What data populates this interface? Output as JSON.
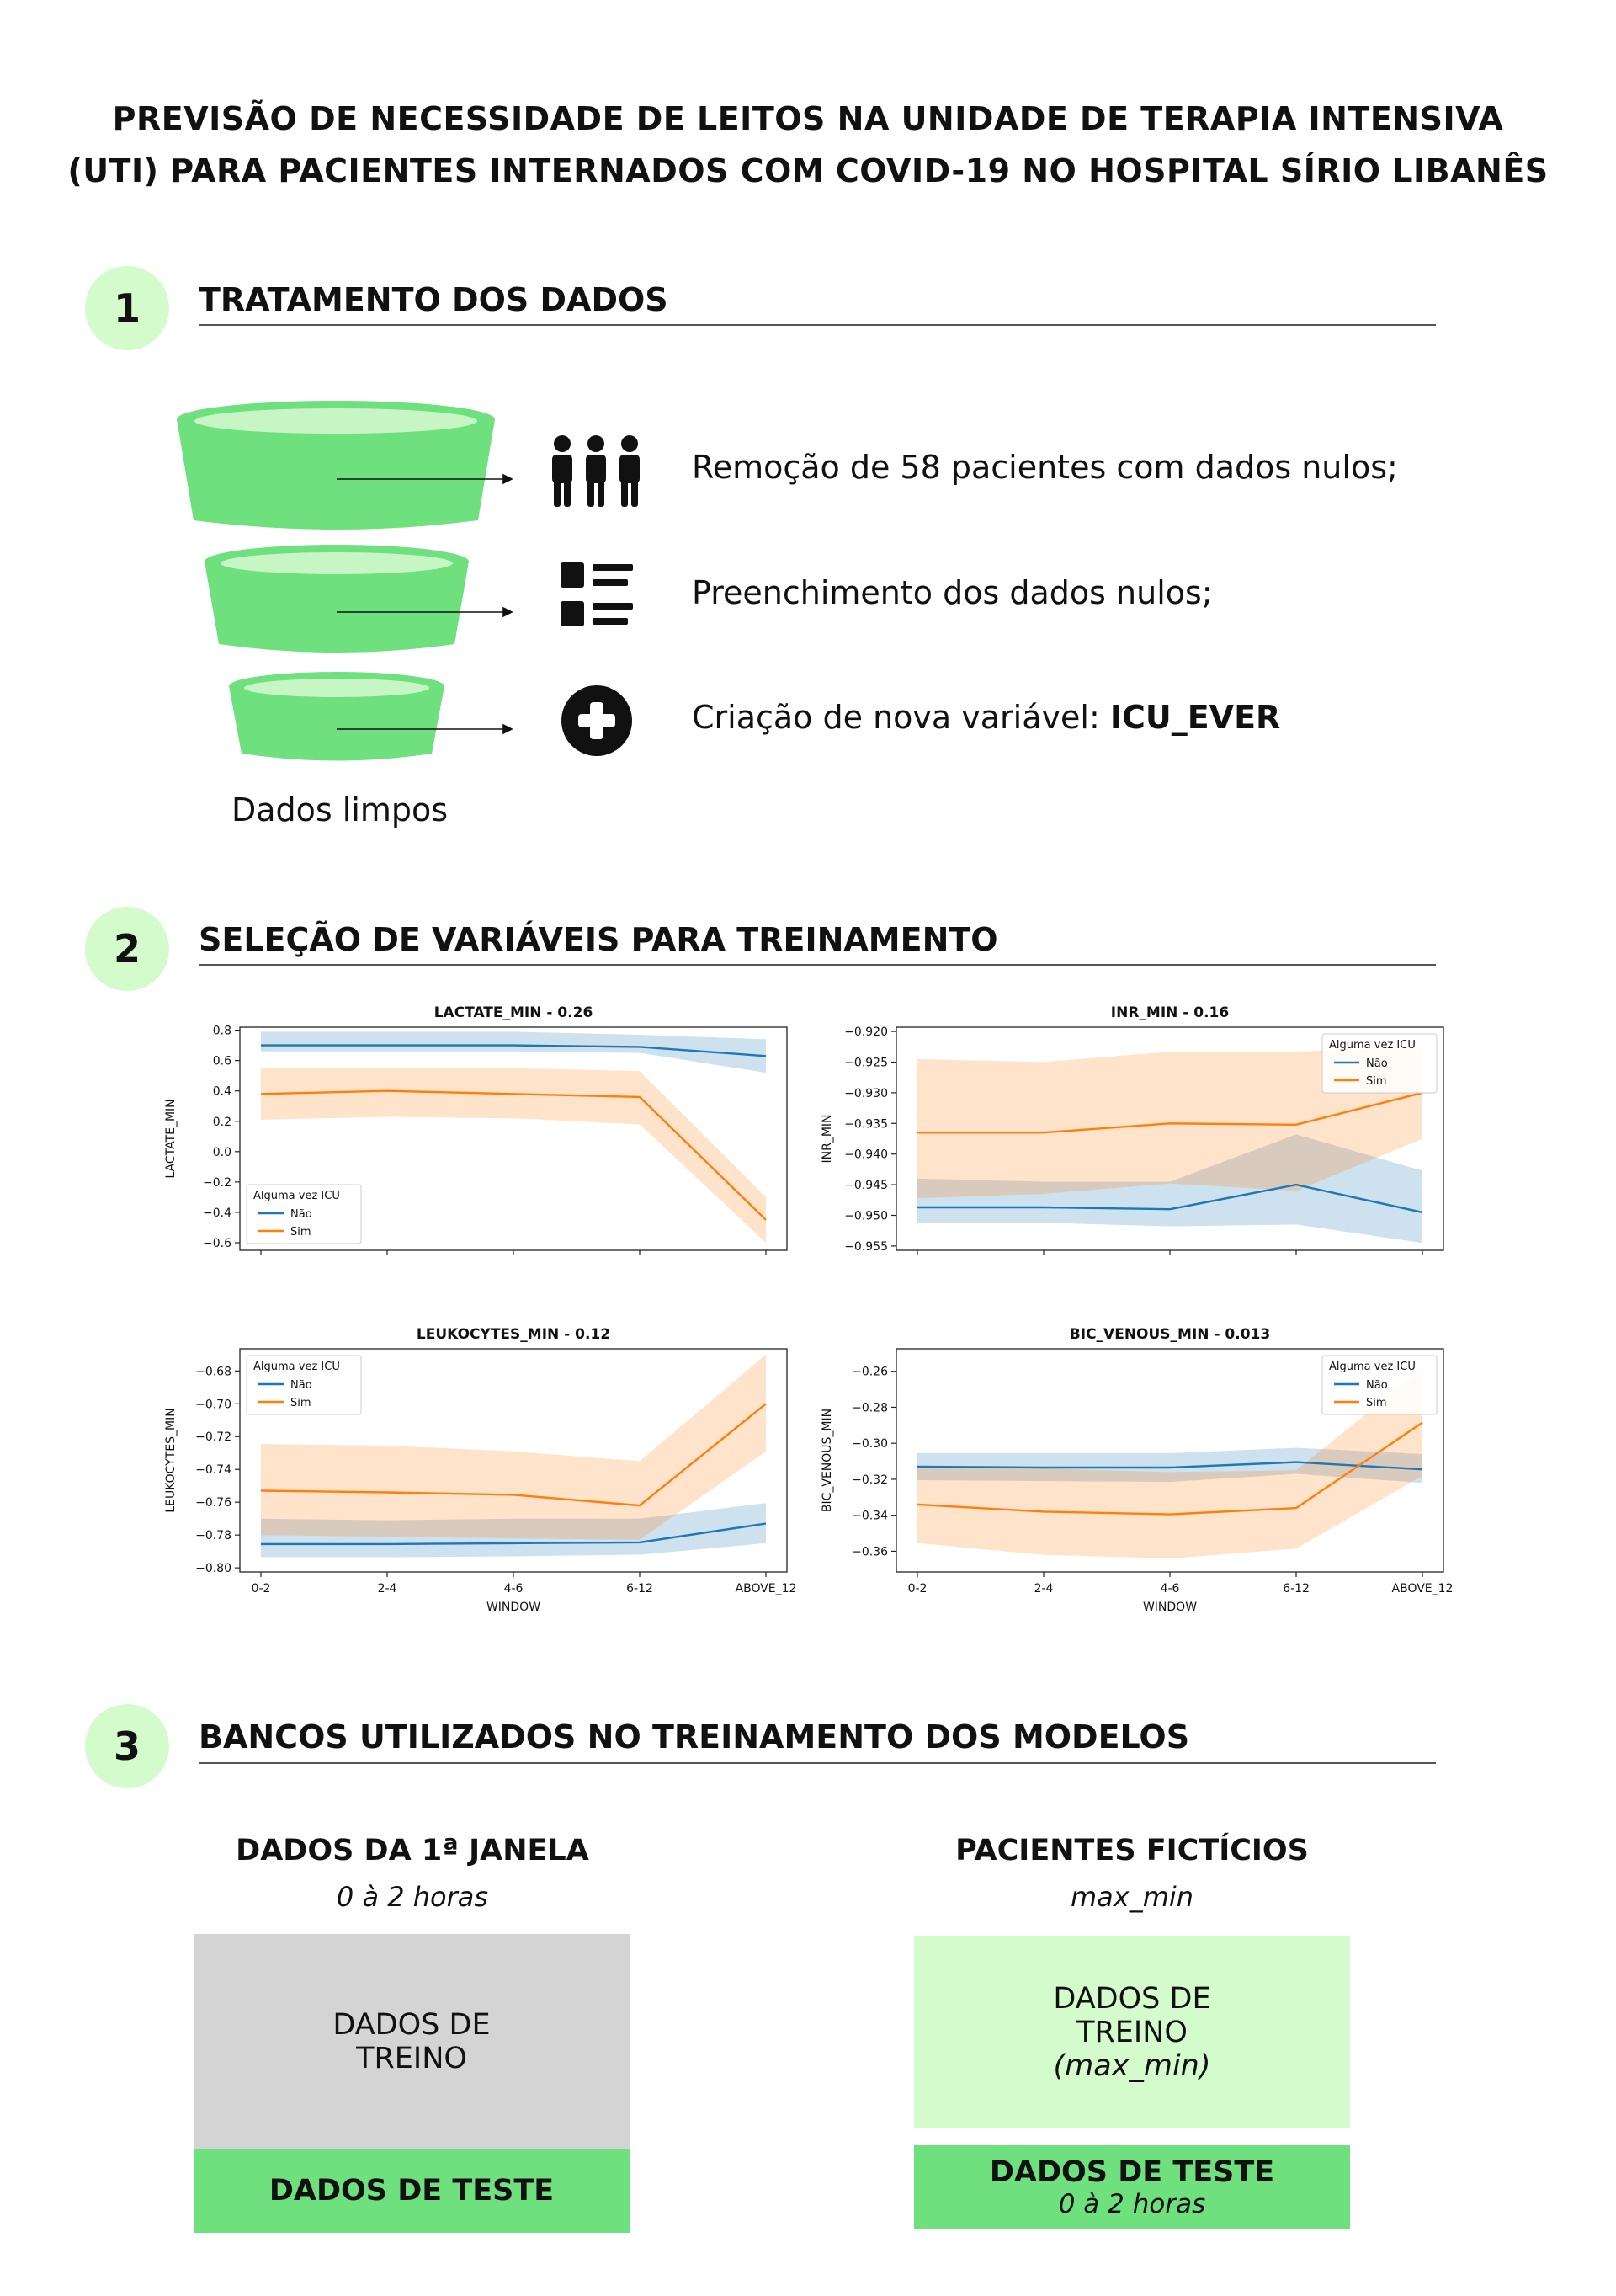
{
  "title": {
    "line1": "PREVISÃO DE NECESSIDADE DE LEITOS NA UNIDADE DE TERAPIA INTENSIVA",
    "line2": "(UTI) PARA PACIENTES INTERNADOS COM COVID-19 NO HOSPITAL SÍRIO LIBANÊS"
  },
  "colors": {
    "badge": "#d3fbcc",
    "green": "#6ee07e",
    "light_green": "#d3fbcc",
    "gray": "#d4d4d4",
    "nao": "#1f77b4",
    "sim": "#ff7f0e"
  },
  "section1": {
    "number": "1",
    "title": "TRATAMENTO DOS DADOS",
    "steps": [
      {
        "icon": "people-icon",
        "text": "Remoção de 58 pacientes com dados nulos;"
      },
      {
        "icon": "list-icon",
        "text": "Preenchimento dos dados nulos;"
      },
      {
        "icon": "plus-circle-icon",
        "text": "Criação de nova variável: ",
        "bold": "ICU_EVER"
      }
    ],
    "caption": "Dados limpos"
  },
  "section2": {
    "number": "2",
    "title": "SELEÇÃO DE VARIÁVEIS PARA TREINAMENTO"
  },
  "chart_data": [
    {
      "type": "line",
      "title": "LACTATE_MIN - 0.26",
      "xlabel": "",
      "ylabel": "LACTATE_MIN",
      "categories": [
        "0-2",
        "2-4",
        "4-6",
        "6-12",
        "ABOVE_12"
      ],
      "show_xticklabels": false,
      "ylim": [
        -0.65,
        0.82
      ],
      "yticks": [
        0.8,
        0.6,
        0.4,
        0.2,
        0.0,
        -0.2,
        -0.4,
        -0.6
      ],
      "ytick_labels": [
        "0.8",
        "0.6",
        "0.4",
        "0.2",
        "0.0",
        "−0.2",
        "−0.4",
        "−0.6"
      ],
      "legend": {
        "title": "Alguma vez ICU",
        "placement": "lower-left"
      },
      "series": [
        {
          "name": "Não",
          "values": [
            0.7,
            0.7,
            0.7,
            0.69,
            0.63
          ],
          "lower": [
            0.66,
            0.66,
            0.66,
            0.65,
            0.52
          ],
          "upper": [
            0.79,
            0.79,
            0.79,
            0.77,
            0.74
          ]
        },
        {
          "name": "Sim",
          "values": [
            0.38,
            0.4,
            0.38,
            0.36,
            -0.45
          ],
          "lower": [
            0.21,
            0.23,
            0.22,
            0.18,
            -0.6
          ],
          "upper": [
            0.55,
            0.55,
            0.55,
            0.53,
            -0.3
          ]
        }
      ]
    },
    {
      "type": "line",
      "title": "INR_MIN - 0.16",
      "xlabel": "",
      "ylabel": "INR_MIN",
      "categories": [
        "0-2",
        "2-4",
        "4-6",
        "6-12",
        "ABOVE_12"
      ],
      "show_xticklabels": false,
      "ylim": [
        -0.9557,
        -0.9193
      ],
      "yticks": [
        -0.92,
        -0.925,
        -0.93,
        -0.935,
        -0.94,
        -0.945,
        -0.95,
        -0.955
      ],
      "ytick_labels": [
        "−0.920",
        "−0.925",
        "−0.930",
        "−0.935",
        "−0.940",
        "−0.945",
        "−0.950",
        "−0.955"
      ],
      "legend": {
        "title": "Alguma vez ICU",
        "placement": "upper-right"
      },
      "series": [
        {
          "name": "Não",
          "values": [
            -0.9487,
            -0.9487,
            -0.949,
            -0.945,
            -0.9495
          ],
          "lower": [
            -0.9512,
            -0.9512,
            -0.9518,
            -0.9515,
            -0.9545
          ],
          "upper": [
            -0.944,
            -0.9445,
            -0.9445,
            -0.9368,
            -0.9427
          ]
        },
        {
          "name": "Sim",
          "values": [
            -0.9365,
            -0.9365,
            -0.935,
            -0.9352,
            -0.93
          ],
          "lower": [
            -0.9472,
            -0.9465,
            -0.9448,
            -0.946,
            -0.9375
          ],
          "upper": [
            -0.9245,
            -0.925,
            -0.9233,
            -0.9233,
            -0.9225
          ]
        }
      ]
    },
    {
      "type": "line",
      "title": "LEUKOCYTES_MIN - 0.12",
      "xlabel": "WINDOW",
      "ylabel": "LEUKOCYTES_MIN",
      "categories": [
        "0-2",
        "2-4",
        "4-6",
        "6-12",
        "ABOVE_12"
      ],
      "show_xticklabels": true,
      "ylim": [
        -0.8025,
        -0.6665
      ],
      "yticks": [
        -0.68,
        -0.7,
        -0.72,
        -0.74,
        -0.76,
        -0.78,
        -0.8
      ],
      "ytick_labels": [
        "−0.68",
        "−0.70",
        "−0.72",
        "−0.74",
        "−0.76",
        "−0.78",
        "−0.80"
      ],
      "legend": {
        "title": "Alguma vez ICU",
        "placement": "upper-left"
      },
      "series": [
        {
          "name": "Não",
          "values": [
            -0.7855,
            -0.7855,
            -0.785,
            -0.7845,
            -0.773
          ],
          "lower": [
            -0.7935,
            -0.7935,
            -0.793,
            -0.792,
            -0.785
          ],
          "upper": [
            -0.77,
            -0.771,
            -0.77,
            -0.77,
            -0.7605
          ]
        },
        {
          "name": "Sim",
          "values": [
            -0.753,
            -0.754,
            -0.7555,
            -0.762,
            -0.7
          ],
          "lower": [
            -0.78,
            -0.781,
            -0.782,
            -0.783,
            -0.729
          ],
          "upper": [
            -0.7245,
            -0.7255,
            -0.729,
            -0.735,
            -0.67
          ]
        }
      ]
    },
    {
      "type": "line",
      "title": "BIC_VENOUS_MIN - 0.013",
      "xlabel": "WINDOW",
      "ylabel": "BIC_VENOUS_MIN",
      "categories": [
        "0-2",
        "2-4",
        "4-6",
        "6-12",
        "ABOVE_12"
      ],
      "show_xticklabels": true,
      "ylim": [
        -0.3715,
        -0.2475
      ],
      "yticks": [
        -0.26,
        -0.28,
        -0.3,
        -0.32,
        -0.34,
        -0.36
      ],
      "ytick_labels": [
        "−0.26",
        "−0.28",
        "−0.30",
        "−0.32",
        "−0.34",
        "−0.36"
      ],
      "legend": {
        "title": "Alguma vez ICU",
        "placement": "upper-right"
      },
      "series": [
        {
          "name": "Não",
          "values": [
            -0.313,
            -0.3135,
            -0.3135,
            -0.3105,
            -0.3145
          ],
          "lower": [
            -0.3205,
            -0.321,
            -0.3215,
            -0.317,
            -0.322
          ],
          "upper": [
            -0.3055,
            -0.3055,
            -0.3055,
            -0.3025,
            -0.306
          ]
        },
        {
          "name": "Sim",
          "values": [
            -0.334,
            -0.338,
            -0.3395,
            -0.336,
            -0.2885
          ],
          "lower": [
            -0.3555,
            -0.362,
            -0.364,
            -0.3585,
            -0.318
          ],
          "upper": [
            -0.3125,
            -0.314,
            -0.316,
            -0.315,
            -0.2585
          ]
        }
      ]
    }
  ],
  "section3": {
    "number": "3",
    "title": "BANCOS UTILIZADOS NO TREINAMENTO DOS MODELOS",
    "left": {
      "heading": "DADOS DA 1ª JANELA",
      "subtitle": "0 à 2 horas",
      "train_line1": "DADOS DE",
      "train_line2": "TREINO",
      "test": "DADOS DE TESTE"
    },
    "right": {
      "heading": "PACIENTES FICTÍCIOS",
      "subtitle": "max_min",
      "train_line1": "DADOS DE",
      "train_line2": "TREINO",
      "train_italic": "(max_min)",
      "test": "DADOS DE TESTE",
      "test_sub": "0 à 2 horas"
    }
  }
}
